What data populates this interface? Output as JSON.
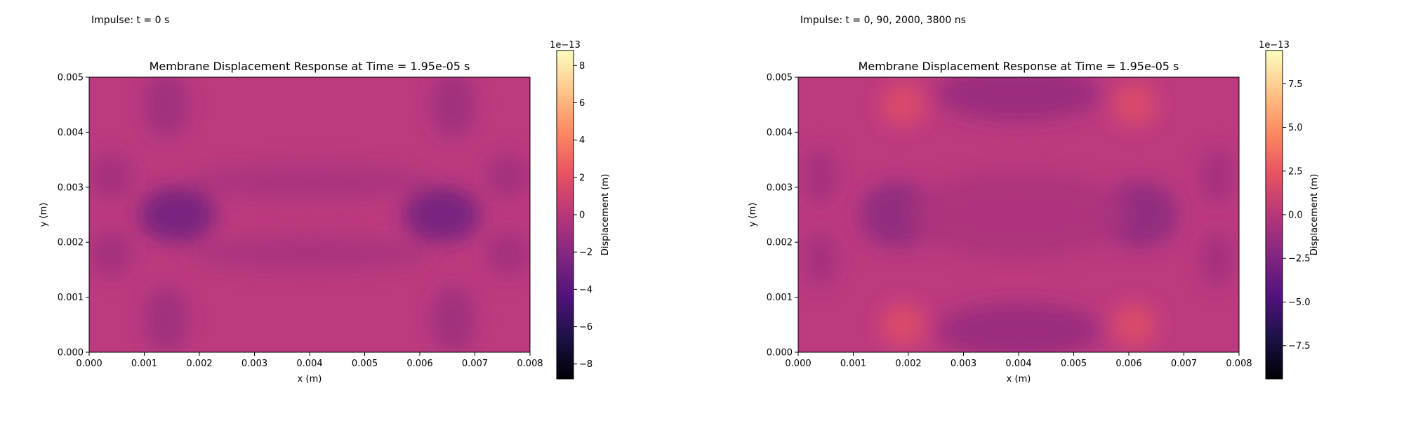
{
  "panels": [
    {
      "impulse_label": "Impulse: t = 0 s"
    },
    {
      "impulse_label": "Impulse: t = 0, 90, 2000, 3800 ns"
    }
  ],
  "colors": {
    "base": "#bc3a7f",
    "colormap": "magma",
    "colormap_stops": [
      "#000004",
      "#1d1147",
      "#51127c",
      "#822681",
      "#b73779",
      "#e75263",
      "#fc8961",
      "#fec488",
      "#fcfdbf"
    ]
  },
  "chart_data": [
    {
      "type": "heatmap",
      "title": "Membrane Displacement Response at Time = 1.95e-05 s",
      "xlabel": "x (m)",
      "ylabel": "y (m)",
      "xlim": [
        0.0,
        0.008
      ],
      "ylim": [
        0.0,
        0.005
      ],
      "xticks": [
        "0.000",
        "0.001",
        "0.002",
        "0.003",
        "0.004",
        "0.005",
        "0.006",
        "0.007",
        "0.008"
      ],
      "yticks": [
        "0.000",
        "0.001",
        "0.002",
        "0.003",
        "0.004",
        "0.005"
      ],
      "colorbar": {
        "label": "Displacement (m)",
        "exponent_label": "1e−13",
        "range": [
          -8.8,
          8.8
        ],
        "tick_values": [
          8,
          6,
          4,
          2,
          0,
          -2,
          -4,
          -6,
          -8
        ],
        "tick_labels": [
          "8",
          "6",
          "4",
          "2",
          "0",
          "−2",
          "−4",
          "−6",
          "−8"
        ]
      },
      "features": [
        {
          "x": 0.0016,
          "y": 0.0025,
          "rx": 0.0007,
          "ry": 0.0005,
          "value": -3.2
        },
        {
          "x": 0.0064,
          "y": 0.0025,
          "rx": 0.0007,
          "ry": 0.0005,
          "value": -3.2
        },
        {
          "x": 0.0014,
          "y": 0.0045,
          "rx": 0.0004,
          "ry": 0.0006,
          "value": -1.2
        },
        {
          "x": 0.0014,
          "y": 0.0006,
          "rx": 0.0004,
          "ry": 0.0006,
          "value": -1.2
        },
        {
          "x": 0.0066,
          "y": 0.0045,
          "rx": 0.0004,
          "ry": 0.0006,
          "value": -1.2
        },
        {
          "x": 0.0066,
          "y": 0.0006,
          "rx": 0.0004,
          "ry": 0.0006,
          "value": -1.2
        },
        {
          "x": 0.0004,
          "y": 0.0032,
          "rx": 0.0004,
          "ry": 0.0004,
          "value": -1.0
        },
        {
          "x": 0.0004,
          "y": 0.0018,
          "rx": 0.0004,
          "ry": 0.0004,
          "value": -1.0
        },
        {
          "x": 0.0076,
          "y": 0.0032,
          "rx": 0.0004,
          "ry": 0.0004,
          "value": -1.0
        },
        {
          "x": 0.0076,
          "y": 0.0018,
          "rx": 0.0004,
          "ry": 0.0004,
          "value": -1.0
        },
        {
          "x": 0.004,
          "y": 0.0031,
          "rx": 0.0022,
          "ry": 0.0003,
          "value": -0.7
        },
        {
          "x": 0.004,
          "y": 0.0018,
          "rx": 0.0022,
          "ry": 0.0003,
          "value": -0.7
        }
      ]
    },
    {
      "type": "heatmap",
      "title": "Membrane Displacement Response at Time = 1.95e-05 s",
      "xlabel": "x (m)",
      "ylabel": "y (m)",
      "xlim": [
        0.0,
        0.008
      ],
      "ylim": [
        0.0,
        0.005
      ],
      "xticks": [
        "0.000",
        "0.001",
        "0.002",
        "0.003",
        "0.004",
        "0.005",
        "0.006",
        "0.007",
        "0.008"
      ],
      "yticks": [
        "0.000",
        "0.001",
        "0.002",
        "0.003",
        "0.004",
        "0.005"
      ],
      "colorbar": {
        "label": "Displacement (m)",
        "exponent_label": "1e−13",
        "range": [
          -9.4,
          9.4
        ],
        "tick_values": [
          7.5,
          5.0,
          2.5,
          0.0,
          -2.5,
          -5.0,
          -7.5
        ],
        "tick_labels": [
          "7.5",
          "5.0",
          "2.5",
          "0.0",
          "−2.5",
          "−5.0",
          "−7.5"
        ]
      },
      "features": [
        {
          "x": 0.0018,
          "y": 0.0025,
          "rx": 0.0007,
          "ry": 0.0006,
          "value": -2.0
        },
        {
          "x": 0.0062,
          "y": 0.0025,
          "rx": 0.0007,
          "ry": 0.0006,
          "value": -2.0
        },
        {
          "x": 0.004,
          "y": 0.0047,
          "rx": 0.0015,
          "ry": 0.0005,
          "value": -1.5
        },
        {
          "x": 0.004,
          "y": 0.0004,
          "rx": 0.0015,
          "ry": 0.0005,
          "value": -1.5
        },
        {
          "x": 0.0019,
          "y": 0.0045,
          "rx": 0.0004,
          "ry": 0.0004,
          "value": 2.0
        },
        {
          "x": 0.0061,
          "y": 0.0045,
          "rx": 0.0004,
          "ry": 0.0004,
          "value": 2.0
        },
        {
          "x": 0.0019,
          "y": 0.0005,
          "rx": 0.0004,
          "ry": 0.0004,
          "value": 2.0
        },
        {
          "x": 0.0061,
          "y": 0.0005,
          "rx": 0.0004,
          "ry": 0.0004,
          "value": 2.0
        },
        {
          "x": 0.0004,
          "y": 0.0032,
          "rx": 0.0003,
          "ry": 0.0005,
          "value": -1.0
        },
        {
          "x": 0.0004,
          "y": 0.0017,
          "rx": 0.0003,
          "ry": 0.0005,
          "value": -1.0
        },
        {
          "x": 0.0076,
          "y": 0.0032,
          "rx": 0.0003,
          "ry": 0.0005,
          "value": -1.0
        },
        {
          "x": 0.0076,
          "y": 0.0017,
          "rx": 0.0003,
          "ry": 0.0005,
          "value": -1.0
        },
        {
          "x": 0.004,
          "y": 0.0025,
          "rx": 0.002,
          "ry": 0.0008,
          "value": -0.5
        }
      ]
    }
  ]
}
